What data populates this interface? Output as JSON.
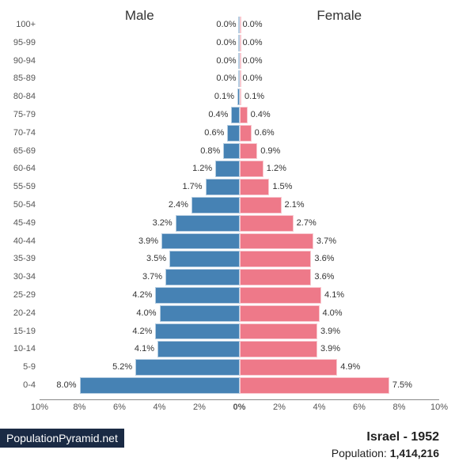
{
  "chart": {
    "type": "population-pyramid",
    "male_label": "Male",
    "female_label": "Female",
    "male_color": "#4682b4",
    "female_color": "#ee7989",
    "background_color": "#ffffff",
    "axis_color": "#888888",
    "label_color": "#333333",
    "age_label_color": "#555555",
    "x_max_pct": 10,
    "x_ticks": [
      "10%",
      "8%",
      "6%",
      "4%",
      "2%",
      "0%",
      "2%",
      "4%",
      "6%",
      "8%",
      "10%"
    ],
    "label_fontsize": 11,
    "header_fontsize": 17,
    "age_groups": [
      {
        "label": "100+",
        "male": 0.0,
        "female": 0.0
      },
      {
        "label": "95-99",
        "male": 0.0,
        "female": 0.0
      },
      {
        "label": "90-94",
        "male": 0.0,
        "female": 0.0
      },
      {
        "label": "85-89",
        "male": 0.0,
        "female": 0.0
      },
      {
        "label": "80-84",
        "male": 0.1,
        "female": 0.1
      },
      {
        "label": "75-79",
        "male": 0.4,
        "female": 0.4
      },
      {
        "label": "70-74",
        "male": 0.6,
        "female": 0.6
      },
      {
        "label": "65-69",
        "male": 0.8,
        "female": 0.9
      },
      {
        "label": "60-64",
        "male": 1.2,
        "female": 1.2
      },
      {
        "label": "55-59",
        "male": 1.7,
        "female": 1.5
      },
      {
        "label": "50-54",
        "male": 2.4,
        "female": 2.1
      },
      {
        "label": "45-49",
        "male": 3.2,
        "female": 2.7
      },
      {
        "label": "40-44",
        "male": 3.9,
        "female": 3.7
      },
      {
        "label": "35-39",
        "male": 3.5,
        "female": 3.6
      },
      {
        "label": "30-34",
        "male": 3.7,
        "female": 3.6
      },
      {
        "label": "25-29",
        "male": 4.2,
        "female": 4.1
      },
      {
        "label": "20-24",
        "male": 4.0,
        "female": 4.0
      },
      {
        "label": "15-19",
        "male": 4.2,
        "female": 3.9
      },
      {
        "label": "10-14",
        "male": 4.1,
        "female": 3.9
      },
      {
        "label": "5-9",
        "male": 5.2,
        "female": 4.9
      },
      {
        "label": "0-4",
        "male": 8.0,
        "female": 7.5
      }
    ]
  },
  "footer": {
    "source_label": "PopulationPyramid.net",
    "source_bg": "#1a2a44",
    "country": "Israel",
    "year": "1952",
    "country_year": "Israel - 1952",
    "population_label": "Population:",
    "population_value": "1,414,216"
  }
}
